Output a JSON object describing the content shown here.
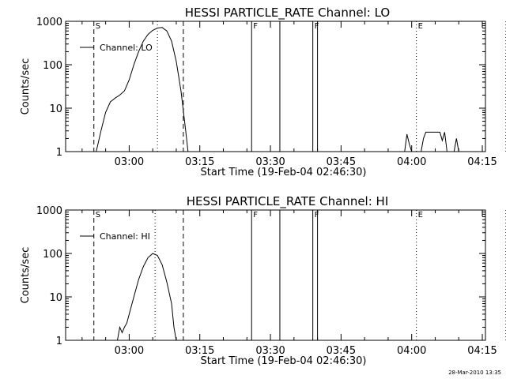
{
  "timestamp": "28-Mar-2010 13:35",
  "chart_data": [
    {
      "type": "line",
      "title": "HESSI PARTICLE_RATE Channel: LO",
      "xlabel": "Start Time (19-Feb-04 02:46:30)",
      "ylabel": "Counts/sec",
      "y_scale": "log",
      "ylim": [
        1,
        1000
      ],
      "y_ticks": [
        "1",
        "10",
        "100",
        "1000"
      ],
      "x_ticks": [
        "03:00",
        "03:15",
        "03:30",
        "03:45",
        "04:00",
        "04:15"
      ],
      "legend": "Channel: LO",
      "legend_position": "top-left",
      "markers": [
        {
          "label": "S",
          "time": "02:52:30",
          "style": "dashed"
        },
        {
          "label": "",
          "time": "03:11:30",
          "style": "dashed"
        },
        {
          "label": "",
          "time": "03:06:00",
          "style": "dotted"
        },
        {
          "label": "F",
          "time": "03:26:00",
          "style": "solid"
        },
        {
          "label": "",
          "time": "03:32:00",
          "style": "solid"
        },
        {
          "label": "F",
          "time": "03:39:00",
          "style": "solid"
        },
        {
          "label": "",
          "time": "03:40:00",
          "style": "solid"
        },
        {
          "label": "E",
          "time": "04:01:00",
          "style": "dotted"
        },
        {
          "label": "",
          "time": "04:20:00",
          "style": "dotted"
        }
      ],
      "series": [
        {
          "points": [
            [
              "02:53:00",
              1
            ],
            [
              "02:54:00",
              3
            ],
            [
              "02:55:00",
              8
            ],
            [
              "02:56:00",
              14
            ],
            [
              "02:57:00",
              17
            ],
            [
              "02:58:00",
              20
            ],
            [
              "02:59:00",
              25
            ],
            [
              "03:00:00",
              45
            ],
            [
              "03:01:00",
              100
            ],
            [
              "03:02:00",
              200
            ],
            [
              "03:03:00",
              350
            ],
            [
              "03:04:00",
              500
            ],
            [
              "03:05:00",
              620
            ],
            [
              "03:06:00",
              700
            ],
            [
              "03:07:00",
              720
            ],
            [
              "03:08:00",
              600
            ],
            [
              "03:09:00",
              350
            ],
            [
              "03:10:00",
              120
            ],
            [
              "03:11:00",
              25
            ],
            [
              "03:12:00",
              3
            ],
            [
              "03:12:30",
              1
            ]
          ],
          "points_2": [
            [
              "03:58:30",
              1
            ],
            [
              "03:59:00",
              2.5
            ],
            [
              "03:59:30",
              1.5
            ],
            [
              "04:00:00",
              1
            ]
          ],
          "points_3": [
            [
              "04:02:00",
              1
            ],
            [
              "04:02:30",
              2
            ],
            [
              "04:03:00",
              2.8
            ],
            [
              "04:04:00",
              2.8
            ],
            [
              "04:05:00",
              2.8
            ],
            [
              "04:06:00",
              2.8
            ],
            [
              "04:06:30",
              1.8
            ],
            [
              "04:07:00",
              2.8
            ],
            [
              "04:07:30",
              1
            ]
          ],
          "points_4": [
            [
              "04:09:00",
              1
            ],
            [
              "04:09:30",
              2
            ],
            [
              "04:10:00",
              1
            ]
          ]
        }
      ]
    },
    {
      "type": "line",
      "title": "HESSI PARTICLE_RATE Channel: HI",
      "xlabel": "Start Time (19-Feb-04 02:46:30)",
      "ylabel": "Counts/sec",
      "y_scale": "log",
      "ylim": [
        1,
        1000
      ],
      "y_ticks": [
        "1",
        "10",
        "100",
        "1000"
      ],
      "x_ticks": [
        "03:00",
        "03:15",
        "03:30",
        "03:45",
        "04:00",
        "04:15"
      ],
      "legend": "Channel: HI",
      "legend_position": "top-left",
      "markers": [
        {
          "label": "S",
          "time": "02:52:30",
          "style": "dashed"
        },
        {
          "label": "",
          "time": "03:11:30",
          "style": "dashed"
        },
        {
          "label": "",
          "time": "03:05:30",
          "style": "dotted"
        },
        {
          "label": "F",
          "time": "03:26:00",
          "style": "solid"
        },
        {
          "label": "",
          "time": "03:32:00",
          "style": "solid"
        },
        {
          "label": "F",
          "time": "03:39:00",
          "style": "solid"
        },
        {
          "label": "",
          "time": "03:40:00",
          "style": "solid"
        },
        {
          "label": "E",
          "time": "04:01:00",
          "style": "dotted"
        },
        {
          "label": "",
          "time": "04:20:00",
          "style": "dotted"
        }
      ],
      "series": [
        {
          "points": [
            [
              "02:57:30",
              1
            ],
            [
              "02:58:00",
              2
            ],
            [
              "02:58:30",
              1.5
            ],
            [
              "02:59:00",
              2
            ],
            [
              "02:59:30",
              2.5
            ],
            [
              "03:00:00",
              4
            ],
            [
              "03:01:00",
              10
            ],
            [
              "03:02:00",
              25
            ],
            [
              "03:03:00",
              50
            ],
            [
              "03:04:00",
              80
            ],
            [
              "03:05:00",
              100
            ],
            [
              "03:06:00",
              90
            ],
            [
              "03:07:00",
              55
            ],
            [
              "03:08:00",
              22
            ],
            [
              "03:09:00",
              7
            ],
            [
              "03:09:30",
              2
            ],
            [
              "03:10:00",
              1
            ]
          ]
        }
      ]
    }
  ]
}
